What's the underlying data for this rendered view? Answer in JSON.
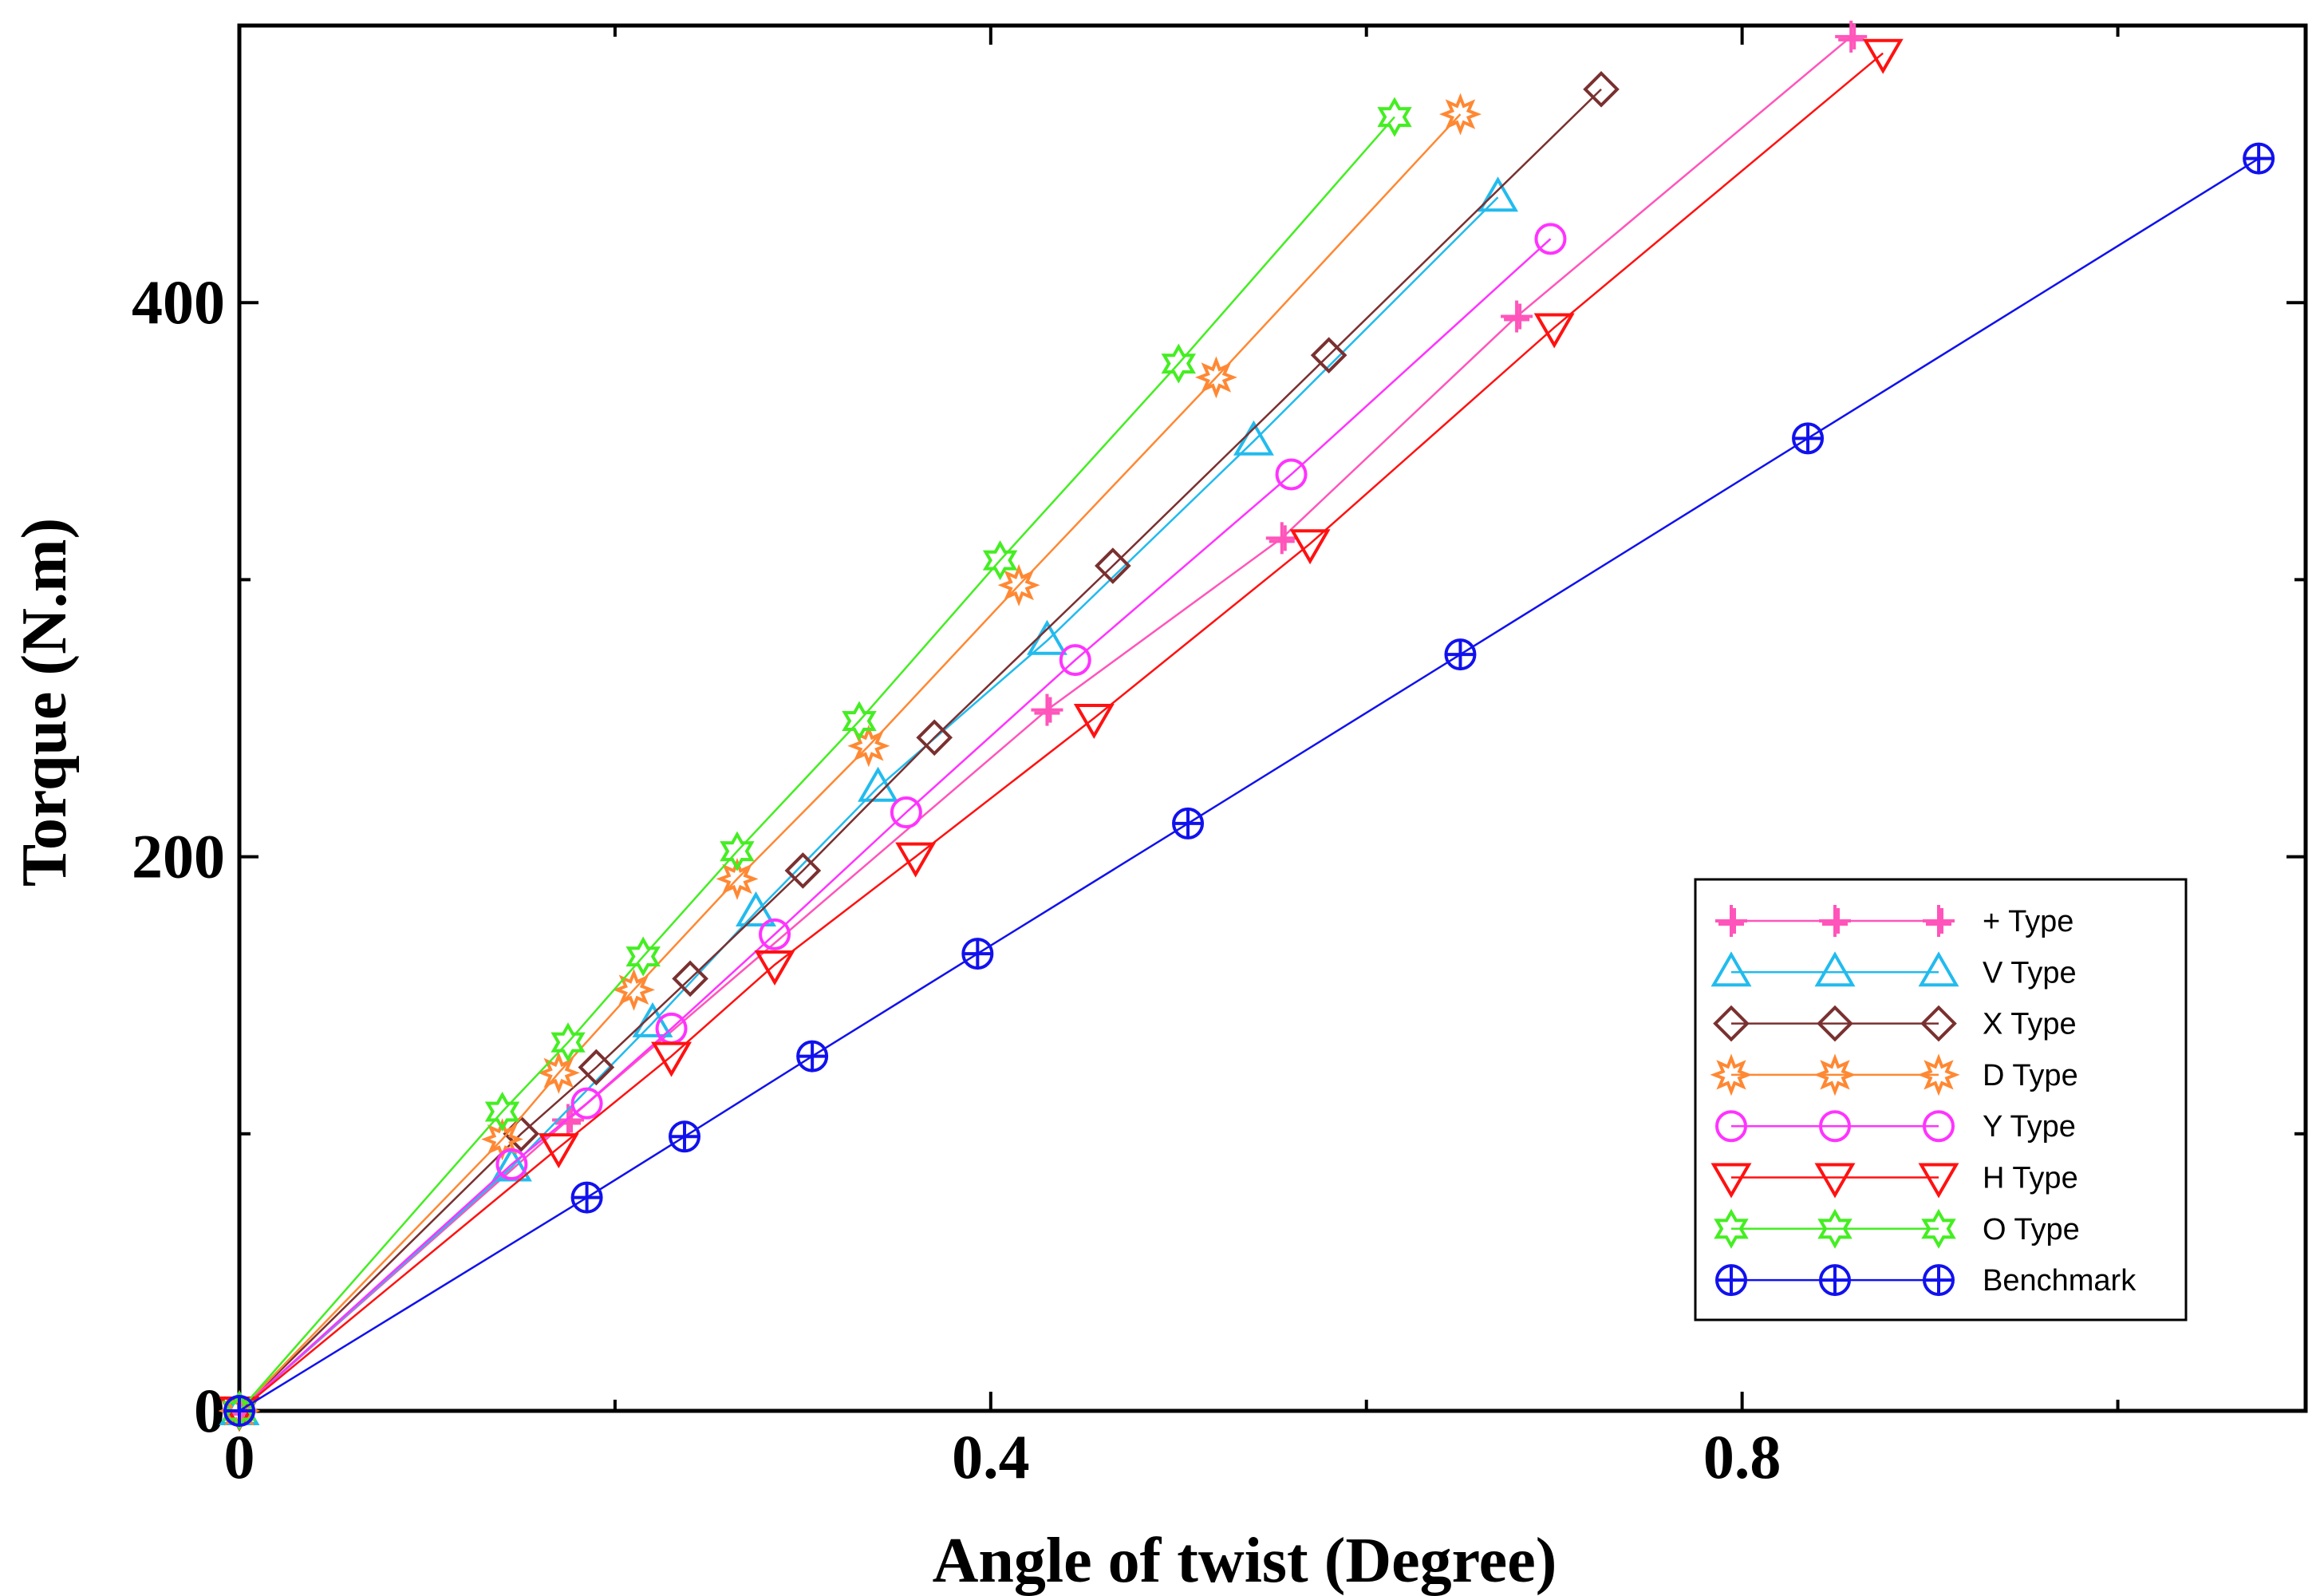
{
  "chart_data": {
    "type": "line",
    "title": "",
    "xlabel": "Angle of twist (Degree)",
    "ylabel": "Torque (N.m)",
    "xlim": [
      0,
      1.1
    ],
    "ylim": [
      0,
      500
    ],
    "xticks": [
      0,
      0.4,
      0.8
    ],
    "xtick_labels": [
      "0",
      "0.4",
      "0.8"
    ],
    "xticks_minor": [
      0.2,
      0.6,
      1.0
    ],
    "yticks": [
      0,
      200,
      400
    ],
    "ytick_labels": [
      "0",
      "200",
      "400"
    ],
    "yticks_minor": [
      100,
      300
    ],
    "grid": false,
    "legend_position": "bottom-right",
    "series": [
      {
        "name": "+ Type",
        "color": "#ff55bb",
        "marker": "plus",
        "x": [
          0,
          0.175,
          0.43,
          0.555,
          0.68,
          0.858
        ],
        "y": [
          0,
          105,
          253,
          315,
          395,
          496
        ]
      },
      {
        "name": "V Type",
        "color": "#22bbee",
        "marker": "triangle-up",
        "x": [
          0,
          0.145,
          0.22,
          0.275,
          0.34,
          0.43,
          0.54,
          0.67
        ],
        "y": [
          0,
          88,
          140,
          180,
          225,
          278,
          350,
          438
        ]
      },
      {
        "name": "X Type",
        "color": "#7a3030",
        "marker": "diamond",
        "x": [
          0,
          0.15,
          0.19,
          0.24,
          0.3,
          0.37,
          0.465,
          0.58,
          0.725
        ],
        "y": [
          0,
          100,
          124,
          156,
          195,
          243,
          305,
          381,
          477
        ]
      },
      {
        "name": "D Type",
        "color": "#ff8833",
        "marker": "star8",
        "x": [
          0,
          0.14,
          0.17,
          0.21,
          0.265,
          0.335,
          0.415,
          0.52,
          0.65
        ],
        "y": [
          0,
          98,
          122,
          152,
          192,
          240,
          298,
          373,
          468
        ]
      },
      {
        "name": "Y Type",
        "color": "#ff33ff",
        "marker": "circle",
        "x": [
          0,
          0.145,
          0.185,
          0.23,
          0.285,
          0.355,
          0.445,
          0.56,
          0.698
        ],
        "y": [
          0,
          89,
          111,
          138,
          172,
          216,
          271,
          338,
          423
        ]
      },
      {
        "name": "H Type",
        "color": "#ff1111",
        "marker": "triangle-down",
        "x": [
          0,
          0.17,
          0.23,
          0.285,
          0.36,
          0.455,
          0.57,
          0.7,
          0.875
        ],
        "y": [
          0,
          95,
          128,
          161,
          200,
          250,
          313,
          391,
          490
        ]
      },
      {
        "name": "O Type",
        "color": "#44ee22",
        "marker": "star6",
        "x": [
          0,
          0.14,
          0.175,
          0.215,
          0.265,
          0.33,
          0.405,
          0.5,
          0.615
        ],
        "y": [
          0,
          108,
          133,
          164,
          202,
          249,
          307,
          378,
          467
        ]
      },
      {
        "name": "Benchmark",
        "color": "#1111ee",
        "marker": "circle-plus",
        "x": [
          0,
          0.185,
          0.237,
          0.305,
          0.393,
          0.505,
          0.65,
          0.835,
          1.075
        ],
        "y": [
          0,
          77,
          99,
          128,
          165,
          212,
          273,
          351,
          452
        ]
      }
    ]
  }
}
